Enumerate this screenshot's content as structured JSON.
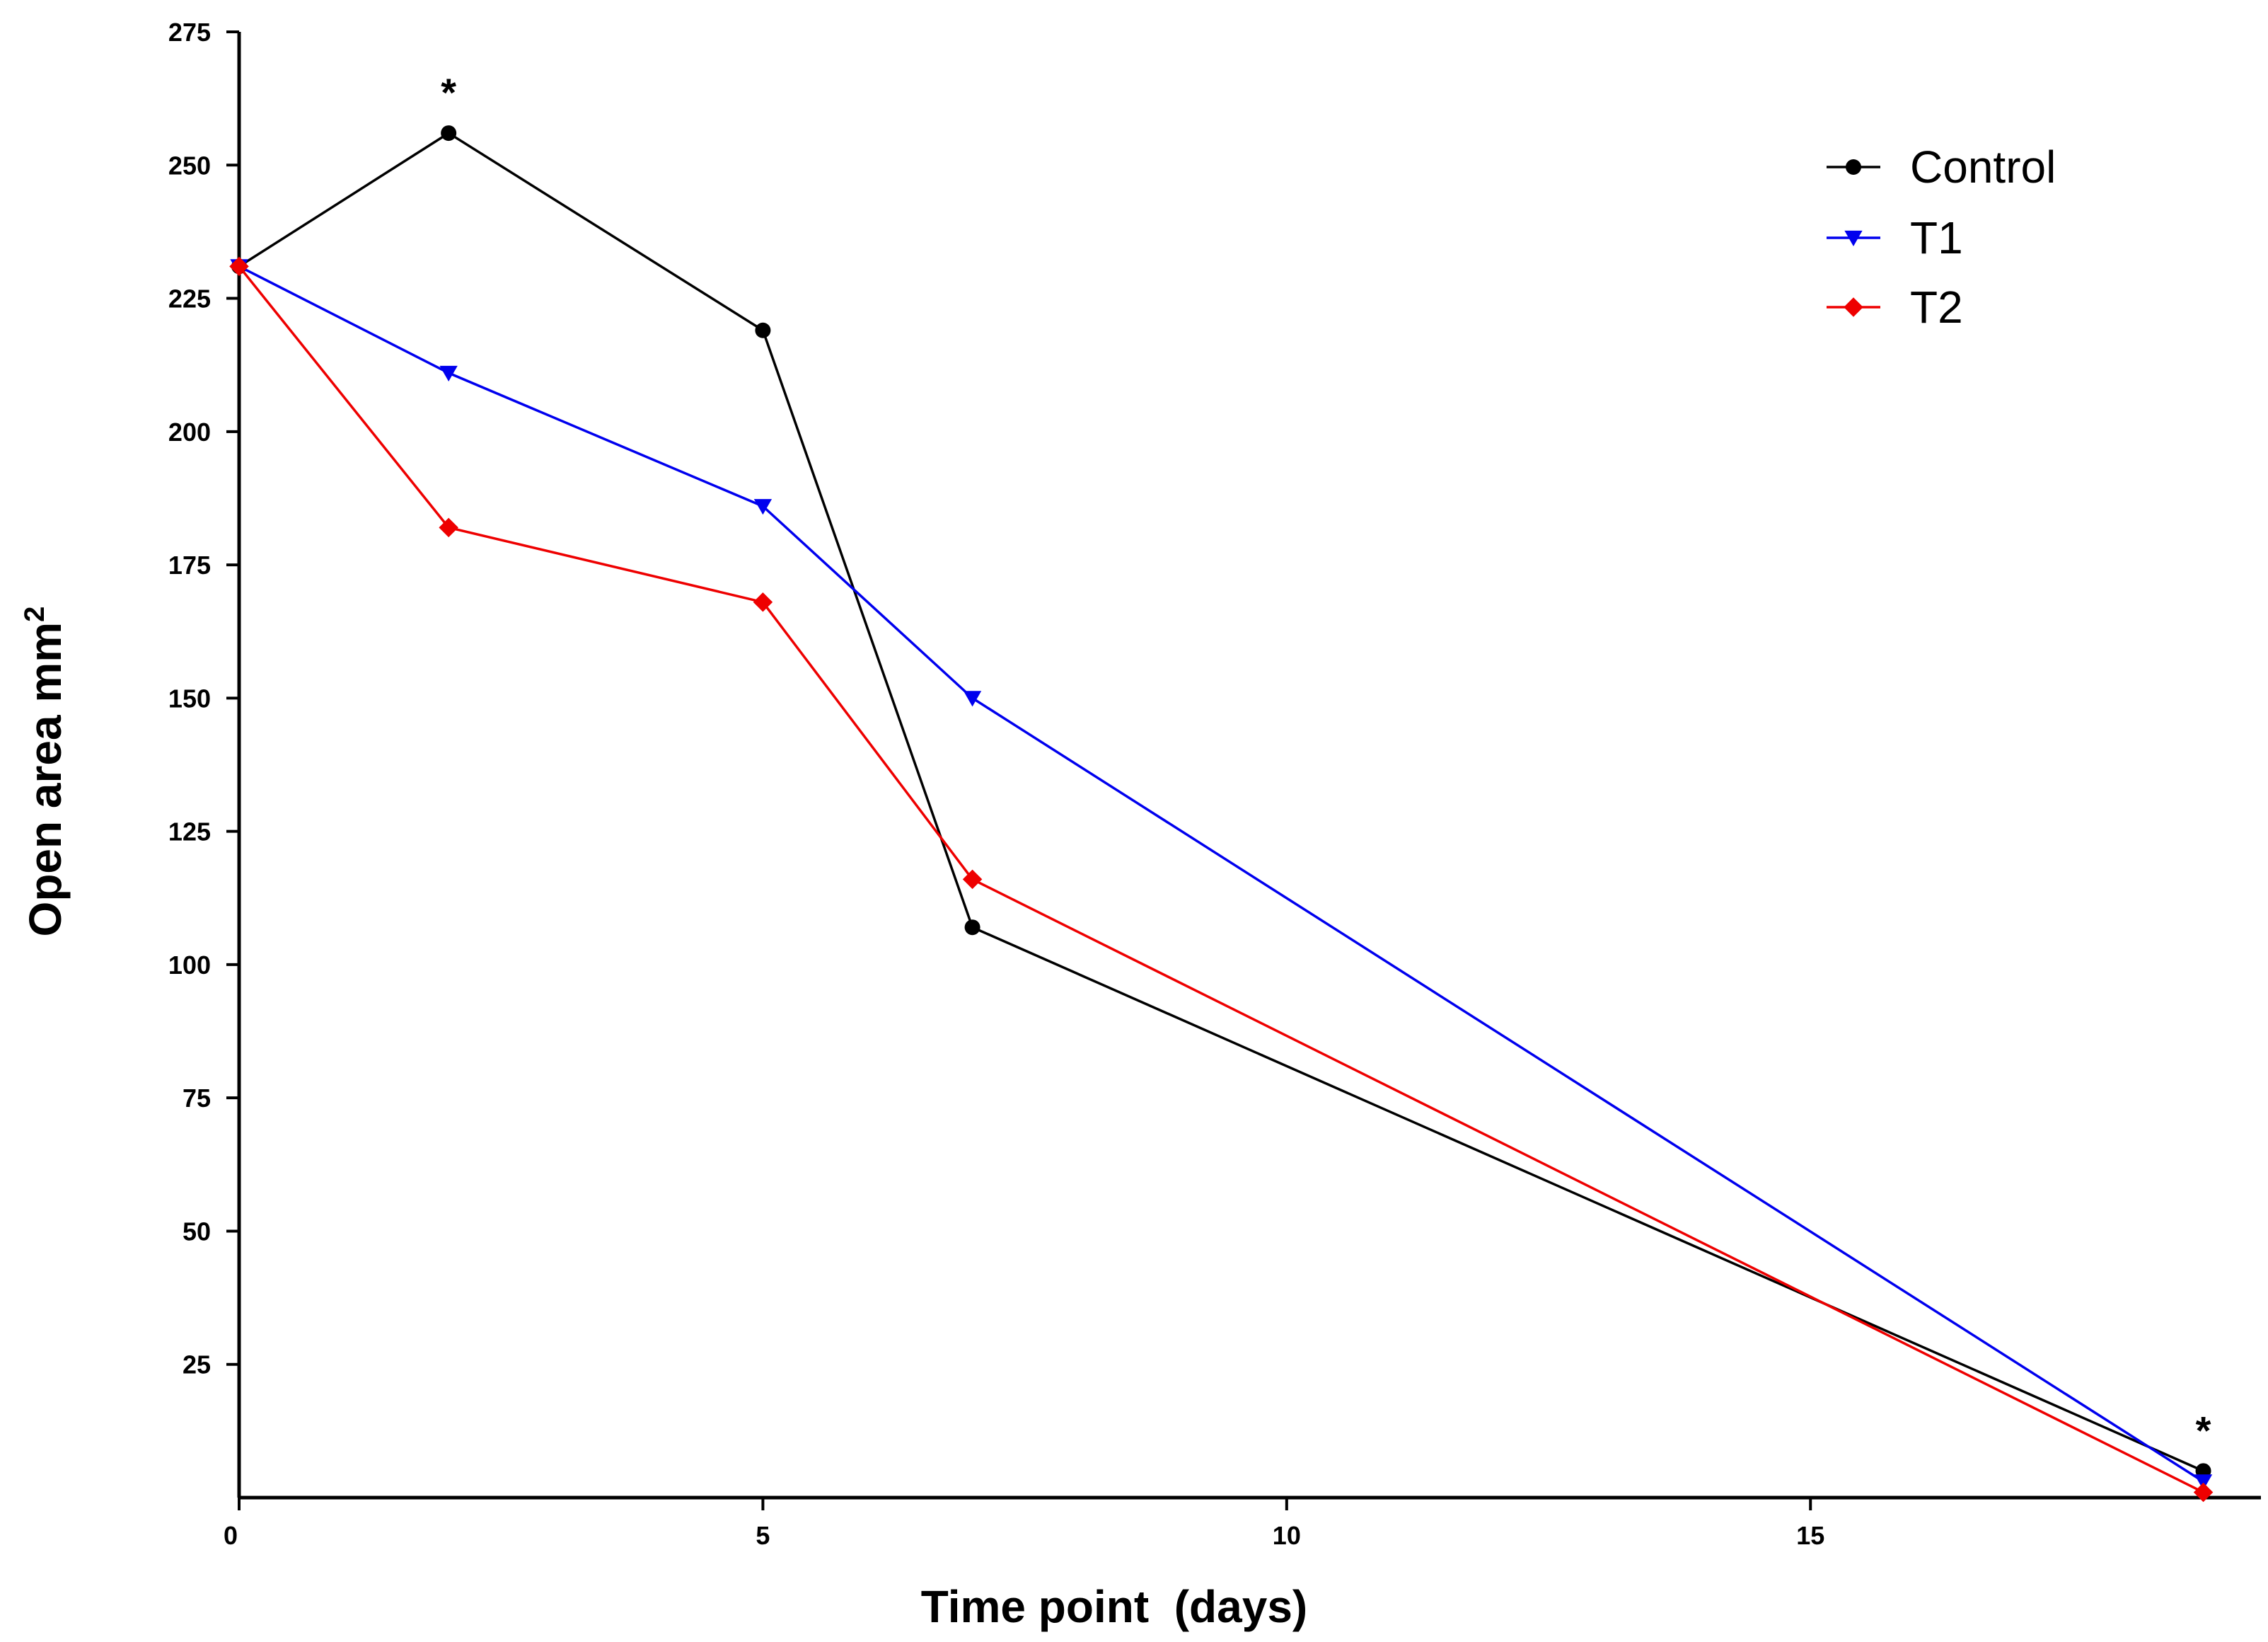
{
  "chart_data": {
    "type": "line",
    "title": "",
    "xlabel": "Time point  (days)",
    "ylabel": "Open area mm",
    "ylabel_superscript": "2",
    "xlim": [
      0,
      19.3
    ],
    "ylim": [
      0,
      275
    ],
    "x_ticks": [
      {
        "value": 0,
        "label": "0"
      },
      {
        "value": 5,
        "label": "5"
      },
      {
        "value": 10,
        "label": "10"
      },
      {
        "value": 15,
        "label": "15"
      }
    ],
    "y_ticks": [
      {
        "value": 25,
        "label": "25"
      },
      {
        "value": 50,
        "label": "50"
      },
      {
        "value": 75,
        "label": "75"
      },
      {
        "value": 100,
        "label": "100"
      },
      {
        "value": 125,
        "label": "125"
      },
      {
        "value": 150,
        "label": "150"
      },
      {
        "value": 175,
        "label": "175"
      },
      {
        "value": 200,
        "label": "200"
      },
      {
        "value": 225,
        "label": "225"
      },
      {
        "value": 250,
        "label": "250"
      },
      {
        "value": 275,
        "label": "275"
      }
    ],
    "x": [
      0,
      2,
      5,
      7,
      18.75
    ],
    "series": [
      {
        "name": "Control",
        "color": "#000000",
        "marker": "circle",
        "values": [
          231,
          256,
          219,
          107,
          5
        ]
      },
      {
        "name": "T1",
        "color": "#0000ee",
        "marker": "triangle-down",
        "values": [
          231,
          211,
          186,
          150,
          3
        ]
      },
      {
        "name": "T2",
        "color": "#ee0000",
        "marker": "diamond",
        "values": [
          231,
          182,
          168,
          116,
          1
        ]
      }
    ],
    "annotations": [
      {
        "text": "*",
        "x": 2,
        "y": 256
      },
      {
        "text": "*",
        "x": 18.75,
        "y": 5
      }
    ],
    "legend_position": "top-right",
    "grid": false
  }
}
